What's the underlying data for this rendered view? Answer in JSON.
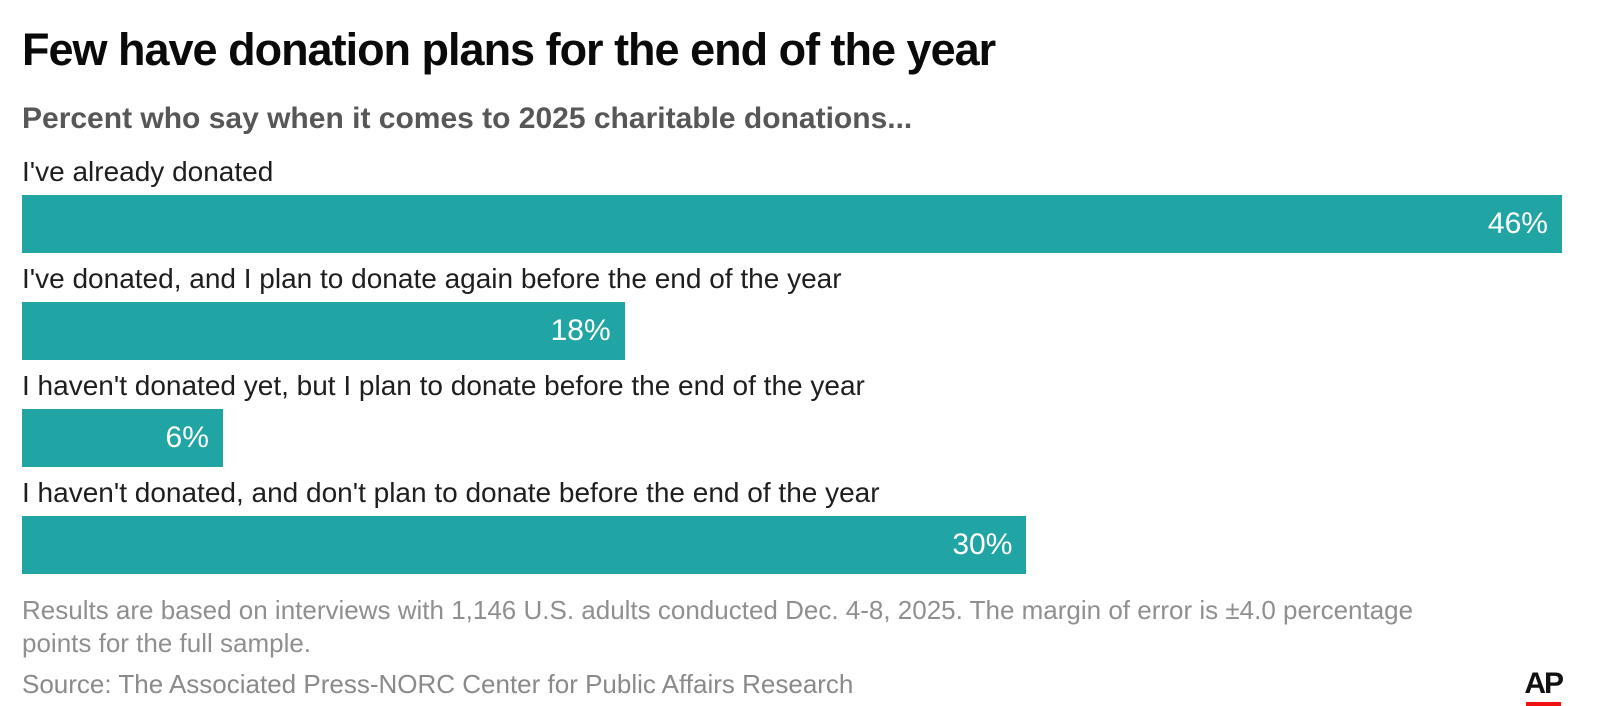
{
  "chart": {
    "title": "Few have donation plans for the end of the year",
    "subtitle": "Percent who say when it comes to 2025 charitable donations..."
  },
  "chart_data": {
    "type": "bar",
    "orientation": "horizontal",
    "title": "Few have donation plans for the end of the year",
    "subtitle": "Percent who say when it comes to 2025 charitable donations...",
    "categories": [
      "I've already donated",
      "I've donated, and I plan to donate again before the end of the year",
      "I haven't donated yet, but I plan to donate before the end of the year",
      "I haven't donated, and don't plan to donate before the end of the year"
    ],
    "values": [
      46,
      18,
      6,
      30
    ],
    "value_labels": [
      "46%",
      "18%",
      "6%",
      "30%"
    ],
    "xlim": [
      0,
      46.5
    ],
    "grid": false,
    "legend": false,
    "bar_color": "#21a5a4",
    "value_label_color": "#ffffff"
  },
  "footer": {
    "note": "Results are based on interviews with 1,146 U.S. adults conducted Dec. 4-8, 2025. The margin of error is ±4.0 percentage points for the full sample.",
    "source": "Source: The Associated Press-NORC Center for Public Affairs Research",
    "logo_text": "AP"
  },
  "colors": {
    "bar_teal": "#21a5a4",
    "title_black": "#0a0a0a",
    "subtitle_gray": "#575757",
    "footnote_gray": "#8f8f8f",
    "ap_red": "#f21111"
  }
}
